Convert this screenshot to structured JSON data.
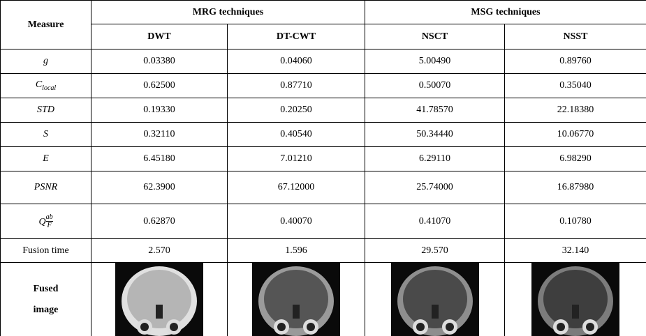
{
  "header": {
    "measure": "Measure",
    "groups": [
      "MRG techniques",
      "MSG techniques"
    ],
    "methods": [
      "DWT",
      "DT-CWT",
      "NSCT",
      "NSST"
    ]
  },
  "rows": [
    {
      "symbol": {
        "base": "g"
      },
      "values": [
        "0.03380",
        "0.04060",
        "5.00490",
        "0.89760"
      ]
    },
    {
      "symbol": {
        "base": "C",
        "sub": "local"
      },
      "values": [
        "0.62500",
        "0.87710",
        "0.50070",
        "0.35040"
      ]
    },
    {
      "symbol": {
        "base": "STD"
      },
      "values": [
        "0.19330",
        "0.20250",
        "41.78570",
        "22.18380"
      ]
    },
    {
      "symbol": {
        "base": "S"
      },
      "values": [
        "0.32110",
        "0.40540",
        "50.34440",
        "10.06770"
      ]
    },
    {
      "symbol": {
        "base": "E"
      },
      "values": [
        "6.45180",
        "7.01210",
        "6.29110",
        "6.98290"
      ]
    },
    {
      "symbol": {
        "base": "PSNR"
      },
      "values": [
        "62.3900",
        "67.12000",
        "25.74000",
        "16.87980"
      ]
    },
    {
      "symbol": {
        "base": "Q",
        "sup": "ab",
        "sub": "F"
      },
      "values": [
        "0.62870",
        "0.40070",
        "0.41070",
        "0.10780"
      ]
    },
    {
      "label": "Fusion time",
      "values": [
        "2.570",
        "1.596",
        "29.570",
        "32.140"
      ]
    }
  ],
  "fused_image_label": "Fused image"
}
